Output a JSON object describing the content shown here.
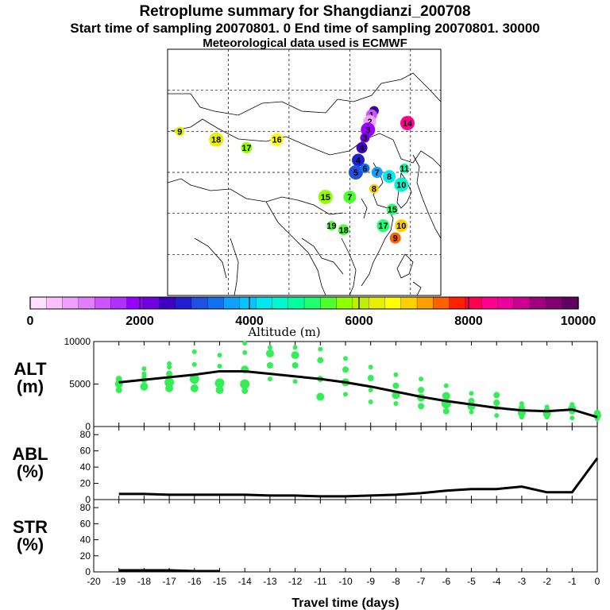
{
  "title": "Retroplume summary for Shangdianzi_200708",
  "subtitle": "Start time of sampling 20070801.     0     End time of sampling 20070801. 30000",
  "subtitle2": "Meteorological data used is ECMWF",
  "colorbar": {
    "label": "Altitude (m)",
    "ticks": [
      "0",
      "2000",
      "4000",
      "6000",
      "8000",
      "10000"
    ],
    "min": 0,
    "max": 10000,
    "colors": [
      "#ffe0ff",
      "#ffc0ff",
      "#f0a0ff",
      "#e080ff",
      "#cc55ff",
      "#b030ff",
      "#9900ff",
      "#7000e0",
      "#4000c0",
      "#2020d0",
      "#2050e0",
      "#1070f0",
      "#10a0ff",
      "#00c8ff",
      "#00e8f0",
      "#00f8d0",
      "#00ffa0",
      "#20ff70",
      "#50ff30",
      "#90ff00",
      "#c0f000",
      "#e8f000",
      "#ffff00",
      "#ffd000",
      "#ffa000",
      "#ff6000",
      "#ff2000",
      "#ff0050",
      "#ff0090",
      "#ee00a0",
      "#cc0090",
      "#a00080",
      "#800070",
      "#600060"
    ]
  },
  "map": {
    "plume_points": [
      {
        "lon": 116.0,
        "lat": 42.5,
        "alt": 2500,
        "label": "0"
      },
      {
        "lon": 115.6,
        "lat": 42.0,
        "alt": 1200,
        "label": "1"
      },
      {
        "lon": 115.3,
        "lat": 41.2,
        "alt": 800,
        "label": "2"
      },
      {
        "lon": 115.0,
        "lat": 40.2,
        "alt": 1800,
        "label": "3"
      },
      {
        "lon": 114.5,
        "lat": 39.2,
        "alt": 2200,
        "label": "3"
      },
      {
        "lon": 114.0,
        "lat": 38.0,
        "alt": 2600,
        "label": "4"
      },
      {
        "lon": 113.4,
        "lat": 36.5,
        "alt": 2900,
        "label": "4"
      },
      {
        "lon": 113.0,
        "lat": 35.0,
        "alt": 3100,
        "label": "5"
      },
      {
        "lon": 114.5,
        "lat": 35.5,
        "alt": 3400,
        "label": "6"
      },
      {
        "lon": 116.5,
        "lat": 35.0,
        "alt": 3700,
        "label": "7"
      },
      {
        "lon": 118.5,
        "lat": 34.5,
        "alt": 4200,
        "label": "8"
      },
      {
        "lon": 120.5,
        "lat": 33.5,
        "alt": 4500,
        "label": "10"
      },
      {
        "lon": 121.0,
        "lat": 35.5,
        "alt": 4800,
        "label": "11"
      },
      {
        "lon": 119.0,
        "lat": 30.5,
        "alt": 5100,
        "label": "15"
      },
      {
        "lon": 117.5,
        "lat": 28.5,
        "alt": 5200,
        "label": "17"
      },
      {
        "lon": 108.0,
        "lat": 32.0,
        "alt": 5600,
        "label": "15"
      },
      {
        "lon": 109.0,
        "lat": 28.5,
        "alt": 5400,
        "label": "19"
      },
      {
        "lon": 95.0,
        "lat": 38.0,
        "alt": 5800,
        "label": "17"
      },
      {
        "lon": 100.0,
        "lat": 39.0,
        "alt": 6500,
        "label": "16"
      },
      {
        "lon": 90.0,
        "lat": 39.0,
        "alt": 6200,
        "label": "18"
      },
      {
        "lon": 84.0,
        "lat": 40.0,
        "alt": 6400,
        "label": "9"
      },
      {
        "lon": 119.5,
        "lat": 27.0,
        "alt": 7600,
        "label": "9"
      },
      {
        "lon": 120.5,
        "lat": 28.5,
        "alt": 6800,
        "label": "10"
      },
      {
        "lon": 121.5,
        "lat": 41.0,
        "alt": 8500,
        "label": "14"
      },
      {
        "lon": 116.0,
        "lat": 33.0,
        "alt": 7000,
        "label": "8"
      },
      {
        "lon": 111.0,
        "lat": 28.0,
        "alt": 5400,
        "label": "18"
      },
      {
        "lon": 112.0,
        "lat": 32.0,
        "alt": 5300,
        "label": "7"
      }
    ]
  },
  "chart_data": [
    {
      "type": "scatter",
      "panel": "ALT",
      "ylabel": "ALT (m)",
      "label_line1": "ALT",
      "label_line2": "(m)",
      "ylim": [
        0,
        10000
      ],
      "yticks": [
        "0",
        "5000",
        "10000"
      ],
      "xlim": [
        -20,
        0
      ],
      "mean_line": {
        "x": [
          -19,
          -18,
          -17,
          -16,
          -15,
          -14,
          -13,
          -12,
          -11,
          -10,
          -9,
          -8,
          -7,
          -6,
          -5,
          -4,
          -3,
          -2,
          -1,
          0
        ],
        "y": [
          5200,
          5500,
          5800,
          6100,
          6500,
          6500,
          6200,
          5900,
          5600,
          5200,
          4700,
          4100,
          3500,
          3000,
          2600,
          2200,
          1900,
          1800,
          2000,
          1100
        ]
      },
      "scatter_color": "#33ee55",
      "scatter_x": [
        -19,
        -19,
        -19,
        -19,
        -18,
        -18,
        -18,
        -18,
        -18,
        -17,
        -17,
        -17,
        -17,
        -17,
        -16,
        -16,
        -16,
        -16,
        -15,
        -15,
        -15,
        -15,
        -14,
        -14,
        -14,
        -14,
        -14,
        -13,
        -13,
        -13,
        -13,
        -12,
        -12,
        -12,
        -12,
        -11,
        -11,
        -11,
        -11,
        -10,
        -10,
        -10,
        -10,
        -9,
        -9,
        -9,
        -9,
        -8,
        -8,
        -8,
        -8,
        -7,
        -7,
        -7,
        -7,
        -6,
        -6,
        -6,
        -6,
        -5,
        -5,
        -5,
        -5,
        -4,
        -4,
        -4,
        -4,
        -3,
        -3,
        -3,
        -3,
        -2,
        -2,
        -2,
        -2,
        -1,
        -1,
        -1,
        -1,
        0,
        0,
        0
      ],
      "scatter_y": [
        5600,
        5000,
        4300,
        5300,
        6800,
        5500,
        4700,
        5900,
        6200,
        7400,
        6200,
        5200,
        4500,
        7000,
        8800,
        7300,
        5600,
        4500,
        8400,
        7100,
        5100,
        4300,
        9800,
        8700,
        6700,
        5000,
        4200,
        9300,
        8600,
        7200,
        5600,
        9300,
        8400,
        7200,
        5300,
        9100,
        7800,
        5600,
        3500,
        8000,
        6700,
        5200,
        3800,
        7000,
        5700,
        4300,
        2900,
        6100,
        4800,
        3700,
        2700,
        5600,
        4300,
        3400,
        2400,
        4800,
        3600,
        2700,
        1800,
        3900,
        3000,
        2400,
        1700,
        3700,
        2800,
        2200,
        1300,
        2700,
        2200,
        1600,
        1100,
        2300,
        1900,
        1500,
        1100,
        2600,
        2100,
        1800,
        1000,
        1600,
        1300,
        900
      ],
      "scatter_r": [
        4,
        5,
        4,
        3,
        3,
        4,
        5,
        3,
        3,
        3,
        4,
        6,
        5,
        3,
        3,
        3,
        6,
        5,
        3,
        3,
        6,
        5,
        3,
        3,
        5,
        6,
        4,
        3,
        5,
        4,
        3,
        3,
        5,
        4,
        3,
        3,
        4,
        4,
        5,
        3,
        4,
        5,
        3,
        3,
        4,
        3,
        3,
        3,
        4,
        5,
        3,
        3,
        4,
        5,
        4,
        3,
        5,
        6,
        4,
        3,
        4,
        5,
        3,
        4,
        4,
        3,
        3,
        3,
        4,
        5,
        3,
        3,
        4,
        5,
        3,
        3,
        5,
        4,
        3,
        4,
        5,
        3
      ]
    },
    {
      "type": "line",
      "panel": "ABL",
      "ylabel": "ABL (%)",
      "label_line1": "ABL",
      "label_line2": "(%)",
      "ylim": [
        0,
        90
      ],
      "yticks": [
        "0",
        "20",
        "40",
        "60",
        "80"
      ],
      "xlim": [
        -20,
        0
      ],
      "x": [
        -19,
        -18,
        -17,
        -16,
        -15,
        -14,
        -13,
        -12,
        -11,
        -10,
        -9,
        -8,
        -7,
        -6,
        -5,
        -4,
        -3,
        -2,
        -1,
        0
      ],
      "y": [
        7,
        7,
        6,
        6,
        6,
        6,
        5,
        5,
        4,
        4,
        5,
        6,
        8,
        11,
        13,
        13,
        16,
        9,
        9,
        51
      ]
    },
    {
      "type": "line",
      "panel": "STR",
      "ylabel": "STR (%)",
      "label_line1": "STR",
      "label_line2": "(%)",
      "ylim": [
        0,
        90
      ],
      "yticks": [
        "0",
        "20",
        "40",
        "60",
        "80"
      ],
      "xlim": [
        -20,
        0
      ],
      "x": [
        -19,
        -18,
        -17,
        -16,
        -15
      ],
      "y": [
        2,
        2,
        2,
        1,
        1
      ],
      "xlabel": "Travel time (days)",
      "xticks": [
        "-20",
        "-19",
        "-18",
        "-17",
        "-16",
        "-15",
        "-14",
        "-13",
        "-12",
        "-11",
        "-10",
        "-9",
        "-8",
        "-7",
        "-6",
        "-5",
        "-4",
        "-3",
        "-2",
        "-1",
        "0"
      ]
    }
  ]
}
